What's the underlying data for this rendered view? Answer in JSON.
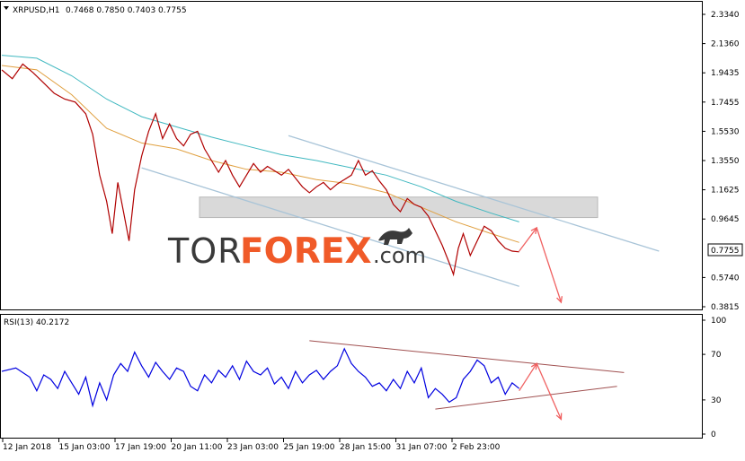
{
  "header": {
    "symbol": "XRPUSD,H1",
    "ohlc": "0.7468 0.7850 0.7403 0.7755"
  },
  "watermark": {
    "part1": "TOR",
    "part2": "FOREX",
    "part3": ".com"
  },
  "colors": {
    "price": "#b00000",
    "ma_fast": "#e0a040",
    "ma_slow": "#40b8c0",
    "zone": "#d0d0d0",
    "channel": "#a8c4d8",
    "arrow": "#f06060",
    "rsi": "#0000e0",
    "rsi_trend": "#a05050",
    "watermark_dark": "#3a3a3a",
    "watermark_accent": "#f05a28"
  },
  "chart_data": [
    {
      "type": "line",
      "series_label": "XRPUSD,H1",
      "price_readout": "0.7755",
      "ylim": [
        0.3815,
        2.4
      ],
      "y_ticks": [
        "2.3340",
        "2.1360",
        "1.9435",
        "1.7455",
        "1.5530",
        "1.3550",
        "1.1625",
        "0.9645",
        "0.7755",
        "0.5740",
        "0.3815"
      ],
      "x_ticks": [
        "12 Jan 2018",
        "15 Jan 03:00",
        "17 Jan 19:00",
        "20 Jan 11:00",
        "23 Jan 03:00",
        "25 Jan 19:00",
        "28 Jan 15:00",
        "31 Jan 07:00",
        "2 Feb 23:00"
      ],
      "x_range": [
        0,
        100
      ],
      "price": [
        [
          0,
          2.02
        ],
        [
          1.5,
          1.96
        ],
        [
          3,
          2.06
        ],
        [
          4.5,
          2.0
        ],
        [
          6,
          1.93
        ],
        [
          7.5,
          1.86
        ],
        [
          9,
          1.82
        ],
        [
          10.5,
          1.8
        ],
        [
          12,
          1.72
        ],
        [
          13,
          1.58
        ],
        [
          14,
          1.3
        ],
        [
          15,
          1.12
        ],
        [
          15.8,
          0.9
        ],
        [
          16.6,
          1.25
        ],
        [
          17.4,
          1.05
        ],
        [
          18.2,
          0.85
        ],
        [
          19,
          1.2
        ],
        [
          20,
          1.43
        ],
        [
          21,
          1.6
        ],
        [
          22,
          1.72
        ],
        [
          23,
          1.55
        ],
        [
          24,
          1.65
        ],
        [
          25,
          1.55
        ],
        [
          26,
          1.5
        ],
        [
          27,
          1.58
        ],
        [
          28,
          1.6
        ],
        [
          29,
          1.48
        ],
        [
          30,
          1.4
        ],
        [
          31,
          1.32
        ],
        [
          32,
          1.4
        ],
        [
          33,
          1.3
        ],
        [
          34,
          1.22
        ],
        [
          35,
          1.3
        ],
        [
          36,
          1.38
        ],
        [
          37,
          1.32
        ],
        [
          38,
          1.36
        ],
        [
          39,
          1.33
        ],
        [
          40,
          1.3
        ],
        [
          41,
          1.34
        ],
        [
          42,
          1.28
        ],
        [
          43,
          1.22
        ],
        [
          44,
          1.18
        ],
        [
          45,
          1.22
        ],
        [
          46,
          1.25
        ],
        [
          47,
          1.2
        ],
        [
          48,
          1.24
        ],
        [
          49,
          1.27
        ],
        [
          50,
          1.3
        ],
        [
          51,
          1.4
        ],
        [
          52,
          1.3
        ],
        [
          53,
          1.33
        ],
        [
          54,
          1.26
        ],
        [
          55,
          1.2
        ],
        [
          56,
          1.1
        ],
        [
          57,
          1.05
        ],
        [
          58,
          1.14
        ],
        [
          59,
          1.1
        ],
        [
          60,
          1.08
        ],
        [
          61,
          1.02
        ],
        [
          62,
          0.92
        ],
        [
          63,
          0.82
        ],
        [
          64,
          0.7
        ],
        [
          64.6,
          0.62
        ],
        [
          65.3,
          0.8
        ],
        [
          66,
          0.9
        ],
        [
          67,
          0.75
        ],
        [
          68,
          0.85
        ],
        [
          69,
          0.95
        ],
        [
          70,
          0.92
        ],
        [
          71,
          0.85
        ],
        [
          72,
          0.8
        ],
        [
          73,
          0.78
        ],
        [
          74,
          0.7755
        ]
      ],
      "ma_fast": [
        [
          0,
          2.05
        ],
        [
          5,
          2.02
        ],
        [
          10,
          1.85
        ],
        [
          15,
          1.62
        ],
        [
          20,
          1.52
        ],
        [
          25,
          1.48
        ],
        [
          30,
          1.4
        ],
        [
          35,
          1.34
        ],
        [
          40,
          1.32
        ],
        [
          45,
          1.27
        ],
        [
          50,
          1.24
        ],
        [
          55,
          1.18
        ],
        [
          60,
          1.08
        ],
        [
          65,
          0.98
        ],
        [
          70,
          0.9
        ],
        [
          74,
          0.84
        ]
      ],
      "ma_slow": [
        [
          0,
          2.12
        ],
        [
          5,
          2.1
        ],
        [
          10,
          1.98
        ],
        [
          15,
          1.82
        ],
        [
          20,
          1.7
        ],
        [
          25,
          1.63
        ],
        [
          30,
          1.56
        ],
        [
          35,
          1.5
        ],
        [
          40,
          1.44
        ],
        [
          45,
          1.4
        ],
        [
          50,
          1.35
        ],
        [
          55,
          1.3
        ],
        [
          60,
          1.22
        ],
        [
          65,
          1.12
        ],
        [
          70,
          1.04
        ],
        [
          74,
          0.98
        ]
      ],
      "resistance_zone": [
        1.01,
        1.15
      ],
      "channel_upper": [
        [
          41,
          1.57
        ],
        [
          94,
          0.78
        ]
      ],
      "channel_lower": [
        [
          20,
          1.35
        ],
        [
          74,
          0.54
        ]
      ],
      "forecast": [
        [
          74,
          0.78
        ],
        [
          76.5,
          0.94
        ],
        [
          80,
          0.43
        ]
      ]
    },
    {
      "type": "line",
      "series_label": "RSI(13) 40.2172",
      "ylim": [
        0,
        100
      ],
      "y_ticks": [
        "100",
        "70",
        "30",
        "0"
      ],
      "rsi": [
        [
          0,
          55
        ],
        [
          2,
          58
        ],
        [
          4,
          50
        ],
        [
          5,
          38
        ],
        [
          6,
          52
        ],
        [
          7,
          48
        ],
        [
          8,
          40
        ],
        [
          9,
          55
        ],
        [
          10,
          45
        ],
        [
          11,
          35
        ],
        [
          12,
          50
        ],
        [
          13,
          25
        ],
        [
          14,
          45
        ],
        [
          15,
          30
        ],
        [
          16,
          52
        ],
        [
          17,
          62
        ],
        [
          18,
          55
        ],
        [
          19,
          72
        ],
        [
          20,
          60
        ],
        [
          21,
          50
        ],
        [
          22,
          63
        ],
        [
          23,
          55
        ],
        [
          24,
          48
        ],
        [
          25,
          58
        ],
        [
          26,
          55
        ],
        [
          27,
          42
        ],
        [
          28,
          38
        ],
        [
          29,
          52
        ],
        [
          30,
          45
        ],
        [
          31,
          56
        ],
        [
          32,
          50
        ],
        [
          33,
          60
        ],
        [
          34,
          48
        ],
        [
          35,
          64
        ],
        [
          36,
          55
        ],
        [
          37,
          52
        ],
        [
          38,
          58
        ],
        [
          39,
          44
        ],
        [
          40,
          50
        ],
        [
          41,
          40
        ],
        [
          42,
          55
        ],
        [
          43,
          45
        ],
        [
          44,
          52
        ],
        [
          45,
          56
        ],
        [
          46,
          48
        ],
        [
          47,
          55
        ],
        [
          48,
          60
        ],
        [
          49,
          75
        ],
        [
          50,
          62
        ],
        [
          51,
          55
        ],
        [
          52,
          50
        ],
        [
          53,
          42
        ],
        [
          54,
          45
        ],
        [
          55,
          38
        ],
        [
          56,
          48
        ],
        [
          57,
          40
        ],
        [
          58,
          55
        ],
        [
          59,
          45
        ],
        [
          60,
          58
        ],
        [
          61,
          32
        ],
        [
          62,
          40
        ],
        [
          63,
          35
        ],
        [
          64,
          28
        ],
        [
          65,
          32
        ],
        [
          66,
          48
        ],
        [
          67,
          55
        ],
        [
          68,
          65
        ],
        [
          69,
          60
        ],
        [
          70,
          45
        ],
        [
          71,
          50
        ],
        [
          72,
          35
        ],
        [
          73,
          45
        ],
        [
          74,
          40
        ]
      ],
      "trend_upper": [
        [
          44,
          82
        ],
        [
          89,
          54
        ]
      ],
      "trend_lower": [
        [
          62,
          22
        ],
        [
          88,
          42
        ]
      ],
      "forecast": [
        [
          74,
          38
        ],
        [
          76.5,
          62
        ],
        [
          80,
          13
        ]
      ]
    }
  ]
}
